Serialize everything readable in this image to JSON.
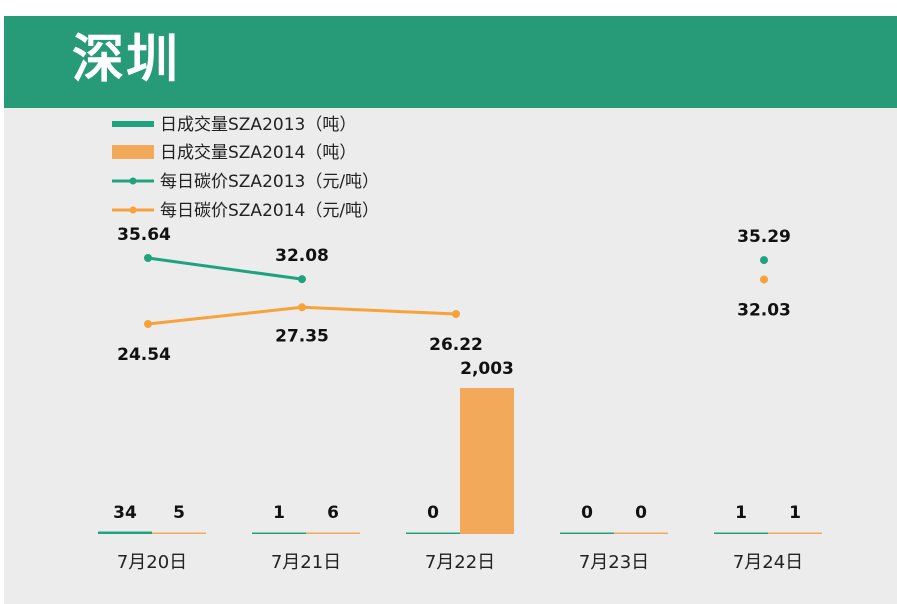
{
  "page": {
    "title": "深圳"
  },
  "chart_data": {
    "type": "bar",
    "categories": [
      "7月20日",
      "7月21日",
      "7月22日",
      "7月23日",
      "7月24日"
    ],
    "series": [
      {
        "name": "日成交量SZA2013（吨）",
        "kind": "bar",
        "values": [
          34,
          1,
          0,
          0,
          1
        ],
        "labels": [
          "34",
          "1",
          "0",
          "0",
          "1"
        ],
        "color": "#1fa37d"
      },
      {
        "name": "日成交量SZA2014（吨）",
        "kind": "bar",
        "values": [
          5,
          6,
          2003,
          0,
          1
        ],
        "labels": [
          "5",
          "6",
          "2,003",
          "0",
          "1"
        ],
        "color": "#f2a95a"
      },
      {
        "name": "每日碳价SZA2013（元/吨）",
        "kind": "line",
        "values": [
          35.64,
          32.08,
          null,
          null,
          35.29
        ],
        "labels": [
          "35.64",
          "32.08",
          "",
          "",
          "35.29"
        ],
        "color": "#1fa37d"
      },
      {
        "name": "每日碳价SZA2014（元/吨）",
        "kind": "line",
        "values": [
          24.54,
          27.35,
          26.22,
          null,
          32.03
        ],
        "labels": [
          "24.54",
          "27.35",
          "26.22",
          "",
          "32.03"
        ],
        "color": "#f7a23a"
      }
    ],
    "legend_position": "top-left",
    "grid": false
  }
}
